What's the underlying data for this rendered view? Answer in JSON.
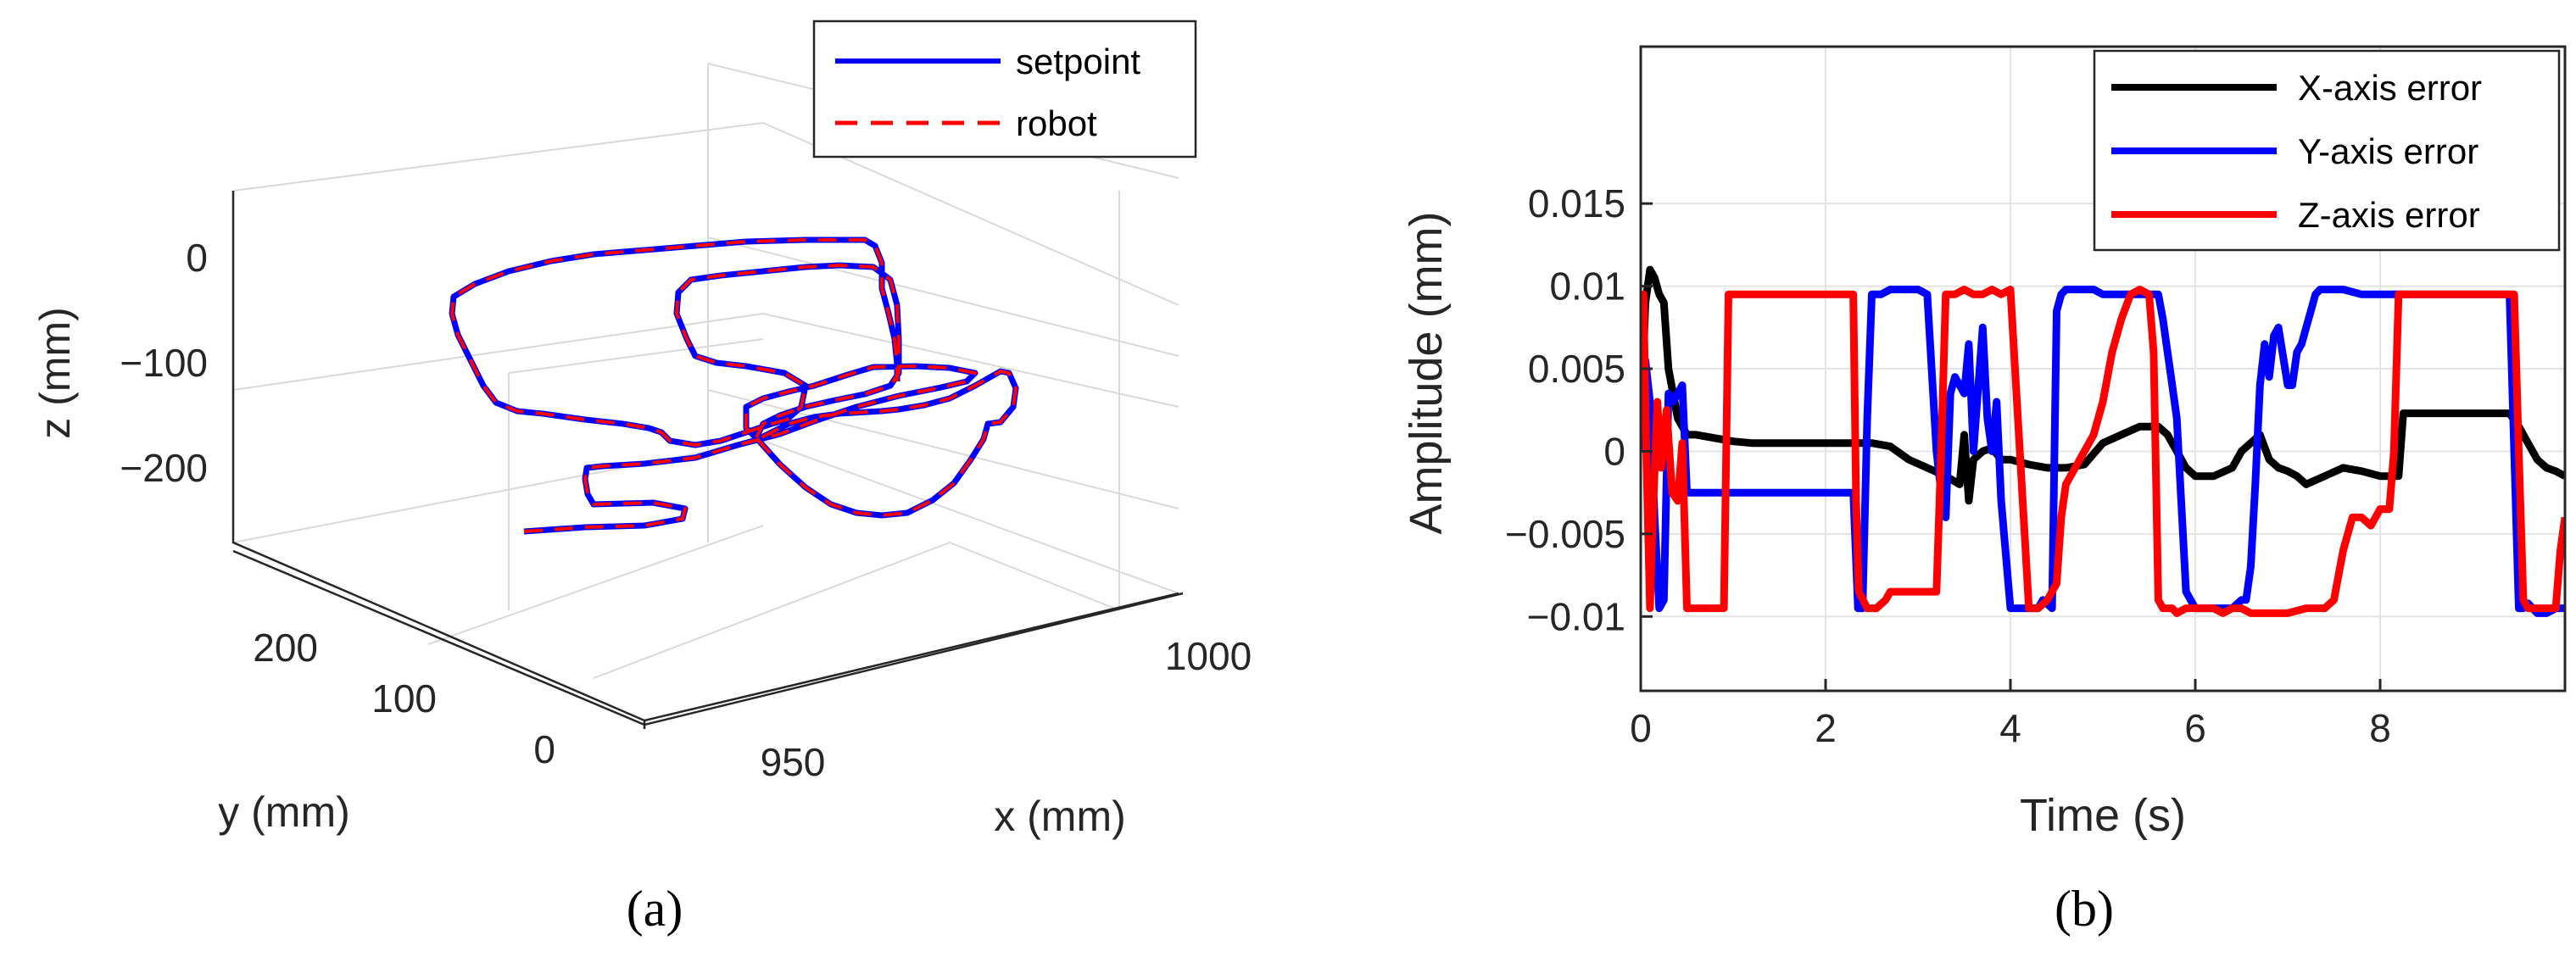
{
  "chart_data": [
    {
      "type": "line3d",
      "panel_label": "(a)",
      "xlabel": "x (mm)",
      "ylabel": "y (mm)",
      "zlabel": "z (mm)",
      "x_ticks": [
        "950",
        "1000"
      ],
      "y_ticks": [
        "0",
        "100",
        "200"
      ],
      "z_ticks": [
        "0",
        "−100",
        "−200"
      ],
      "series": [
        {
          "name": "setpoint",
          "color": "#0000ff",
          "style": "solid"
        },
        {
          "name": "robot",
          "color": "#ff0000",
          "style": "dashed"
        }
      ],
      "legend_loc": "top-right"
    },
    {
      "type": "line",
      "panel_label": "(b)",
      "xlabel": "Time (s)",
      "ylabel": "Amplitude (mm)",
      "xlim": [
        0,
        10
      ],
      "ylim": [
        -0.0145,
        0.0245
      ],
      "x_ticks": [
        0,
        2,
        4,
        6,
        8
      ],
      "x_tick_labels": [
        "0",
        "2",
        "4",
        "6",
        "8"
      ],
      "y_ticks": [
        0.015,
        0.01,
        0.005,
        0,
        -0.005,
        -0.01
      ],
      "y_tick_labels": [
        "0.015",
        "0.01",
        "0.005",
        "0",
        "−0.005",
        "−0.01"
      ],
      "grid": true,
      "legend_loc": "top-right",
      "series": [
        {
          "name": "X-axis error",
          "color": "#000000",
          "x": [
            0,
            0.05,
            0.1,
            0.15,
            0.2,
            0.25,
            0.3,
            0.4,
            0.5,
            0.6,
            0.8,
            1.0,
            1.2,
            1.4,
            2.3,
            2.5,
            2.7,
            2.9,
            3.1,
            3.3,
            3.45,
            3.5,
            3.55,
            3.6,
            3.7,
            3.8,
            3.9,
            4.0,
            4.2,
            4.4,
            4.6,
            4.8,
            5.0,
            5.2,
            5.4,
            5.6,
            5.7,
            5.8,
            5.9,
            6.0,
            6.2,
            6.4,
            6.5,
            6.6,
            6.7,
            6.8,
            6.9,
            7.0,
            7.1,
            7.2,
            7.4,
            7.6,
            7.8,
            8.0,
            8.2,
            8.25,
            9.4,
            9.5,
            9.6,
            9.7,
            9.8,
            9.9,
            10.0
          ],
          "values": [
            0.0015,
            0.009,
            0.011,
            0.0105,
            0.0095,
            0.009,
            0.005,
            0.002,
            0.001,
            0.001,
            0.0008,
            0.0006,
            0.0005,
            0.0005,
            0.0005,
            0.0005,
            0.0003,
            -0.0005,
            -0.001,
            -0.0015,
            -0.002,
            0.001,
            -0.003,
            -0.0005,
            0.0,
            0.0002,
            -0.0005,
            -0.0005,
            -0.0008,
            -0.001,
            -0.001,
            -0.0008,
            0.0005,
            0.001,
            0.0015,
            0.0015,
            0.001,
            0.0,
            -0.001,
            -0.0015,
            -0.0015,
            -0.001,
            0.0,
            0.0005,
            0.001,
            -0.0005,
            -0.001,
            -0.0012,
            -0.0015,
            -0.002,
            -0.0015,
            -0.001,
            -0.0012,
            -0.0015,
            -0.0015,
            0.0023,
            0.0023,
            0.0015,
            0.0005,
            -0.0005,
            -0.001,
            -0.0012,
            -0.0015
          ]
        },
        {
          "name": "Y-axis error",
          "color": "#0000ff",
          "x": [
            0,
            0.05,
            0.1,
            0.15,
            0.2,
            0.25,
            0.3,
            0.35,
            0.4,
            0.45,
            0.5,
            0.55,
            0.6,
            0.65,
            0.7,
            0.8,
            0.9,
            1.0,
            1.05,
            2.3,
            2.35,
            2.4,
            2.45,
            2.5,
            2.55,
            2.6,
            2.7,
            2.8,
            2.9,
            3.0,
            3.1,
            3.2,
            3.25,
            3.3,
            3.35,
            3.4,
            3.5,
            3.55,
            3.6,
            3.7,
            3.75,
            3.8,
            3.85,
            3.9,
            4.0,
            4.1,
            4.2,
            4.3,
            4.35,
            4.45,
            4.5,
            4.55,
            4.6,
            4.65,
            4.8,
            4.9,
            5.0,
            5.2,
            5.4,
            5.6,
            5.65,
            5.7,
            5.75,
            5.8,
            5.9,
            6.0,
            6.1,
            6.2,
            6.3,
            6.4,
            6.5,
            6.55,
            6.6,
            6.65,
            6.7,
            6.75,
            6.8,
            6.85,
            6.9,
            7.0,
            7.05,
            7.1,
            7.15,
            7.2,
            7.25,
            7.3,
            7.35,
            7.4,
            7.5,
            7.6,
            7.8,
            8.0,
            8.2,
            8.3,
            8.5,
            8.7,
            9.0,
            9.3,
            9.4,
            9.45,
            9.5,
            9.55,
            9.6,
            9.7,
            9.8,
            9.9,
            10.0
          ],
          "values": [
            0.0,
            0.0055,
            0.003,
            -0.004,
            -0.0095,
            -0.009,
            0.0035,
            0.003,
            0.0035,
            0.004,
            -0.0025,
            -0.0025,
            -0.0025,
            -0.0025,
            -0.0025,
            -0.0025,
            -0.0025,
            -0.0025,
            -0.0025,
            -0.0025,
            -0.0095,
            -0.0095,
            0.002,
            0.0095,
            0.0095,
            0.0095,
            0.0098,
            0.0098,
            0.0098,
            0.0098,
            0.0095,
            0.0,
            -0.0025,
            -0.004,
            0.0035,
            0.0045,
            0.0035,
            0.0065,
            0.0,
            0.0075,
            0.002,
            0.0,
            0.003,
            -0.003,
            -0.0095,
            -0.0095,
            -0.0095,
            -0.0095,
            -0.009,
            -0.0095,
            0.0085,
            0.0095,
            0.0098,
            0.0098,
            0.0098,
            0.0098,
            0.0095,
            0.0095,
            0.0095,
            0.0095,
            0.008,
            0.006,
            0.004,
            0.002,
            -0.0085,
            -0.0095,
            -0.0095,
            -0.0095,
            -0.0095,
            -0.0095,
            -0.009,
            -0.009,
            -0.007,
            -0.002,
            0.004,
            0.0065,
            0.0045,
            0.007,
            0.0075,
            0.004,
            0.004,
            0.006,
            0.0065,
            0.0075,
            0.0085,
            0.0095,
            0.0098,
            0.0098,
            0.0098,
            0.0098,
            0.0095,
            0.0095,
            0.0095,
            0.0095,
            0.0095,
            0.0095,
            0.0095,
            0.0095,
            0.0095,
            0.0,
            -0.0095,
            -0.0095,
            -0.0092,
            -0.0098,
            -0.0098,
            -0.0095,
            -0.0095
          ]
        },
        {
          "name": "Z-axis error",
          "color": "#ff0000",
          "x": [
            0,
            0.03,
            0.06,
            0.1,
            0.13,
            0.18,
            0.22,
            0.28,
            0.34,
            0.4,
            0.45,
            0.5,
            0.55,
            0.6,
            0.7,
            0.8,
            0.9,
            0.95,
            1.0,
            2.3,
            2.33,
            2.36,
            2.45,
            2.55,
            2.65,
            2.7,
            2.8,
            2.9,
            3.0,
            3.1,
            3.2,
            3.25,
            3.3,
            3.4,
            3.5,
            3.6,
            3.7,
            3.8,
            3.9,
            4.0,
            4.2,
            4.3,
            4.4,
            4.5,
            4.55,
            4.6,
            4.7,
            4.8,
            4.9,
            5.0,
            5.1,
            5.2,
            5.3,
            5.4,
            5.5,
            5.55,
            5.6,
            5.65,
            5.7,
            5.75,
            5.8,
            5.9,
            6.0,
            6.1,
            6.2,
            6.3,
            6.4,
            6.5,
            6.6,
            6.7,
            6.8,
            6.9,
            7.0,
            7.2,
            7.4,
            7.5,
            7.6,
            7.7,
            7.8,
            7.9,
            8.0,
            8.1,
            8.15,
            8.2,
            8.25,
            9.4,
            9.45,
            9.5,
            9.55,
            9.6,
            9.7,
            9.8,
            9.9,
            9.95,
            10.0
          ],
          "values": [
            0.009,
            0.0095,
            0.0,
            -0.0095,
            -0.004,
            0.003,
            -0.001,
            0.0025,
            -0.0025,
            -0.003,
            0.0005,
            -0.0095,
            -0.0095,
            -0.0095,
            -0.0095,
            -0.0095,
            -0.0095,
            0.0095,
            0.0095,
            0.0095,
            -0.003,
            -0.0085,
            -0.0095,
            -0.0095,
            -0.009,
            -0.0085,
            -0.0085,
            -0.0085,
            -0.0085,
            -0.0085,
            -0.0085,
            0.0,
            0.0095,
            0.0095,
            0.0098,
            0.0095,
            0.0095,
            0.0098,
            0.0095,
            0.0098,
            -0.0095,
            -0.0095,
            -0.009,
            -0.008,
            -0.004,
            -0.002,
            -0.001,
            0.0,
            0.001,
            0.003,
            0.006,
            0.008,
            0.0095,
            0.0098,
            0.0095,
            0.006,
            -0.009,
            -0.0095,
            -0.0095,
            -0.0095,
            -0.0098,
            -0.0095,
            -0.0095,
            -0.0095,
            -0.0095,
            -0.0098,
            -0.0095,
            -0.0095,
            -0.0098,
            -0.0098,
            -0.0098,
            -0.0098,
            -0.0098,
            -0.0095,
            -0.0095,
            -0.009,
            -0.006,
            -0.004,
            -0.004,
            -0.0045,
            -0.0035,
            -0.0035,
            0.0,
            0.0095,
            0.0095,
            0.0095,
            0.0095,
            0.0,
            -0.009,
            -0.0095,
            -0.0095,
            -0.0095,
            -0.0095,
            -0.006,
            -0.004
          ]
        }
      ]
    }
  ]
}
